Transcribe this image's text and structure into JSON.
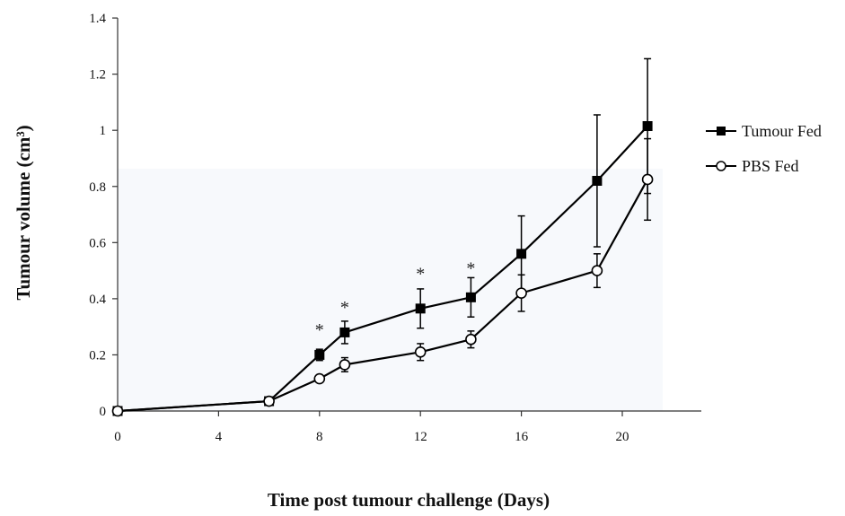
{
  "chart_data": {
    "type": "line",
    "title": "",
    "xlabel": "Time post tumour challenge (Days)",
    "ylabel": "Tumour volume (cm³)",
    "xlim": [
      0,
      22
    ],
    "ylim": [
      0,
      1.4
    ],
    "xticks": [
      0,
      4,
      8,
      12,
      16,
      20
    ],
    "xtick_labels": [
      "0",
      "4",
      "8",
      "12",
      "16",
      "20"
    ],
    "yticks": [
      0,
      0.2,
      0.4,
      0.6,
      0.8,
      1,
      1.2,
      1.4
    ],
    "ytick_labels": [
      "0",
      "0.2",
      "0.4",
      "0.6",
      "0.8",
      "1",
      "1.2",
      "1.4"
    ],
    "grid": false,
    "legend_position": "right",
    "series": [
      {
        "name": "Tumour Fed",
        "marker": "filled-square",
        "color": "#000000",
        "x": [
          0,
          6,
          8,
          9,
          12,
          14,
          16,
          19,
          21
        ],
        "y": [
          0,
          0.035,
          0.2,
          0.28,
          0.365,
          0.405,
          0.56,
          0.82,
          1.015
        ],
        "err": [
          0,
          0.005,
          0.02,
          0.04,
          0.07,
          0.07,
          0.135,
          0.235,
          0.24
        ]
      },
      {
        "name": "PBS Fed",
        "marker": "open-circle",
        "color": "#000000",
        "x": [
          0,
          6,
          8,
          9,
          12,
          14,
          16,
          19,
          21
        ],
        "y": [
          0,
          0.035,
          0.115,
          0.165,
          0.21,
          0.255,
          0.42,
          0.5,
          0.825
        ],
        "err": [
          0,
          0.005,
          0.01,
          0.025,
          0.03,
          0.03,
          0.065,
          0.06,
          0.145
        ]
      }
    ],
    "annotations": [
      {
        "text": "*",
        "x": 8,
        "y": 0.3
      },
      {
        "text": "*",
        "x": 9,
        "y": 0.38
      },
      {
        "text": "*",
        "x": 12,
        "y": 0.5
      },
      {
        "text": "*",
        "x": 14,
        "y": 0.52
      }
    ]
  }
}
